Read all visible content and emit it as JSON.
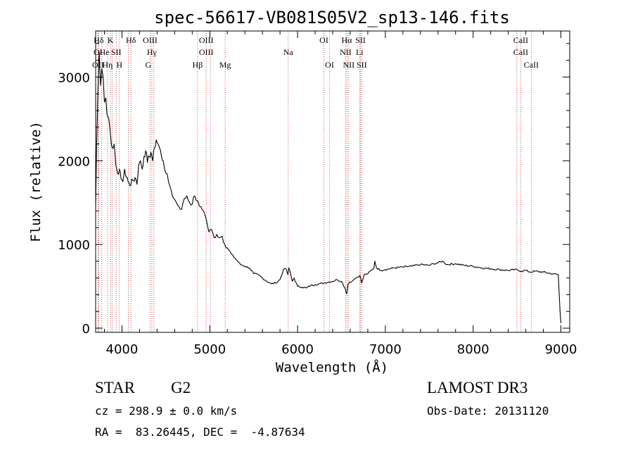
{
  "chart_data": {
    "type": "line",
    "title": "spec-56617-VB081S05V2_sp13-146.fits",
    "xlabel": "Wavelength (Å)",
    "ylabel": "Flux (relative)",
    "xlim": [
      3700,
      9100
    ],
    "ylim": [
      -50,
      3550
    ],
    "xticks": [
      4000,
      5000,
      6000,
      7000,
      8000,
      9000
    ],
    "xtick_labels": [
      "4000",
      "5000",
      "6000",
      "7000",
      "8000",
      "9000"
    ],
    "yticks": [
      0,
      1000,
      2000,
      3000
    ],
    "ytick_labels": [
      "0",
      "1000",
      "2000",
      "3000"
    ],
    "series": [
      {
        "name": "flux",
        "x": [
          3700,
          3710,
          3725,
          3740,
          3755,
          3770,
          3785,
          3800,
          3815,
          3830,
          3850,
          3870,
          3890,
          3910,
          3930,
          3950,
          3970,
          3990,
          4010,
          4030,
          4050,
          4070,
          4090,
          4110,
          4130,
          4150,
          4170,
          4190,
          4210,
          4230,
          4250,
          4270,
          4290,
          4310,
          4330,
          4350,
          4370,
          4390,
          4410,
          4430,
          4450,
          4470,
          4500,
          4530,
          4560,
          4590,
          4620,
          4650,
          4680,
          4710,
          4740,
          4770,
          4800,
          4830,
          4860,
          4880,
          4900,
          4930,
          4960,
          4990,
          5020,
          5050,
          5080,
          5110,
          5140,
          5170,
          5200,
          5250,
          5300,
          5350,
          5400,
          5450,
          5500,
          5550,
          5600,
          5650,
          5700,
          5750,
          5800,
          5840,
          5870,
          5890,
          5900,
          5920,
          5940,
          5960,
          6000,
          6050,
          6100,
          6150,
          6200,
          6250,
          6300,
          6350,
          6400,
          6450,
          6500,
          6540,
          6560,
          6575,
          6590,
          6620,
          6650,
          6680,
          6710,
          6730,
          6760,
          6800,
          6850,
          6870,
          6880,
          6900,
          6950,
          7000,
          7100,
          7200,
          7300,
          7400,
          7500,
          7550,
          7600,
          7650,
          7700,
          7800,
          7900,
          8000,
          8100,
          8200,
          8300,
          8400,
          8500,
          8550,
          8600,
          8650,
          8700,
          8800,
          8900,
          8970,
          8990,
          9000
        ],
        "values": [
          1450,
          2100,
          2800,
          3300,
          2900,
          3100,
          3000,
          2700,
          2750,
          2550,
          2500,
          2300,
          2150,
          2200,
          1950,
          1850,
          1900,
          1780,
          1750,
          1900,
          1800,
          1750,
          1700,
          1780,
          1760,
          1800,
          1720,
          1950,
          2000,
          1900,
          2050,
          2120,
          1980,
          2050,
          2100,
          2000,
          2150,
          2250,
          2200,
          2150,
          2050,
          2000,
          1850,
          1750,
          1650,
          1550,
          1500,
          1450,
          1420,
          1550,
          1580,
          1500,
          1480,
          1580,
          1520,
          1460,
          1450,
          1400,
          1300,
          1150,
          1180,
          1080,
          1120,
          1080,
          1100,
          1000,
          960,
          880,
          820,
          760,
          740,
          720,
          650,
          640,
          600,
          560,
          530,
          540,
          580,
          700,
          710,
          640,
          720,
          650,
          560,
          600,
          500,
          490,
          480,
          510,
          520,
          530,
          540,
          550,
          560,
          580,
          560,
          480,
          410,
          520,
          550,
          560,
          590,
          610,
          630,
          540,
          640,
          650,
          700,
          720,
          800,
          720,
          690,
          700,
          720,
          730,
          740,
          760,
          750,
          770,
          780,
          800,
          760,
          770,
          750,
          740,
          720,
          710,
          700,
          690,
          700,
          680,
          690,
          670,
          680,
          670,
          650,
          640,
          200,
          60
        ]
      }
    ],
    "lines": [
      {
        "label": "OII",
        "x": 3727
      },
      {
        "label": "Hδ",
        "x": 3734
      },
      {
        "label": "OII",
        "x": 3729
      },
      {
        "label": "Hε",
        "x": 3770
      },
      {
        "label": "Hη",
        "x": 3835
      },
      {
        "label": "K",
        "x": 3869
      },
      {
        "label": "Hε",
        "x": 3889
      },
      {
        "label": "SII",
        "x": 3934
      },
      {
        "label": "H",
        "x": 3970
      },
      {
        "label": "SII",
        "x": 4072
      },
      {
        "label": "Hδ",
        "x": 4102
      },
      {
        "label": "OIII",
        "x": 4320
      },
      {
        "label": "Hγ",
        "x": 4340
      },
      {
        "label": "G",
        "x": 4363
      },
      {
        "label": "Hβ",
        "x": 4861
      },
      {
        "label": "OIII",
        "x": 4959
      },
      {
        "label": "OIII",
        "x": 5007
      },
      {
        "label": "Mg",
        "x": 5175
      },
      {
        "label": "Na",
        "x": 5893
      },
      {
        "label": "OI",
        "x": 6300
      },
      {
        "label": "OI",
        "x": 6364
      },
      {
        "label": "NII",
        "x": 6548
      },
      {
        "label": "Hα",
        "x": 6563
      },
      {
        "label": "NII",
        "x": 6583
      },
      {
        "label": "Li",
        "x": 6707
      },
      {
        "label": "SII",
        "x": 6717
      },
      {
        "label": "SII",
        "x": 6731
      },
      {
        "label": "CaII",
        "x": 8498
      },
      {
        "label": "CaII",
        "x": 8542
      },
      {
        "label": "CaII",
        "x": 8662
      }
    ],
    "line_labels": [
      {
        "text": "Hδ",
        "x": 3734,
        "row": 1
      },
      {
        "text": "K",
        "x": 3869,
        "row": 1
      },
      {
        "text": "Hδ",
        "x": 4102,
        "row": 1
      },
      {
        "text": "OIII",
        "x": 4320,
        "row": 1
      },
      {
        "text": "OIII",
        "x": 4959,
        "row": 1
      },
      {
        "text": "OI",
        "x": 6300,
        "row": 1
      },
      {
        "text": "Hα",
        "x": 6560,
        "row": 1
      },
      {
        "text": "SII",
        "x": 6717,
        "row": 1
      },
      {
        "text": "CaII",
        "x": 8542,
        "row": 1
      },
      {
        "text": "OI",
        "x": 3727,
        "row": 2
      },
      {
        "text": "He",
        "x": 3800,
        "row": 2
      },
      {
        "text": "SII",
        "x": 3934,
        "row": 2
      },
      {
        "text": "Hγ",
        "x": 4340,
        "row": 2
      },
      {
        "text": "OIII",
        "x": 4959,
        "row": 2
      },
      {
        "text": "Na",
        "x": 5893,
        "row": 2
      },
      {
        "text": "NII",
        "x": 6548,
        "row": 2
      },
      {
        "text": "Li",
        "x": 6707,
        "row": 2
      },
      {
        "text": "CaII",
        "x": 8542,
        "row": 2
      },
      {
        "text": "OII",
        "x": 3727,
        "row": 3
      },
      {
        "text": "Hη",
        "x": 3835,
        "row": 3
      },
      {
        "text": "H",
        "x": 3970,
        "row": 3
      },
      {
        "text": "G",
        "x": 4300,
        "row": 3
      },
      {
        "text": "Hβ",
        "x": 4861,
        "row": 3
      },
      {
        "text": "Mg",
        "x": 5175,
        "row": 3
      },
      {
        "text": "OI",
        "x": 6364,
        "row": 3
      },
      {
        "text": "NII",
        "x": 6583,
        "row": 3
      },
      {
        "text": "SII",
        "x": 6731,
        "row": 3
      },
      {
        "text": "CaII",
        "x": 8662,
        "row": 3
      }
    ]
  },
  "info": {
    "object_class": "STAR",
    "subclass": "G2",
    "survey": "LAMOST DR3",
    "redshift": "cz = 298.9 ± 0.0 km/s",
    "obs_date": "Obs-Date: 20131120",
    "coords": "RA =  83.26445, DEC =  -4.87634"
  },
  "colors": {
    "spectrum": "#000000",
    "line_marker": "#c62828",
    "axes": "#000000"
  }
}
